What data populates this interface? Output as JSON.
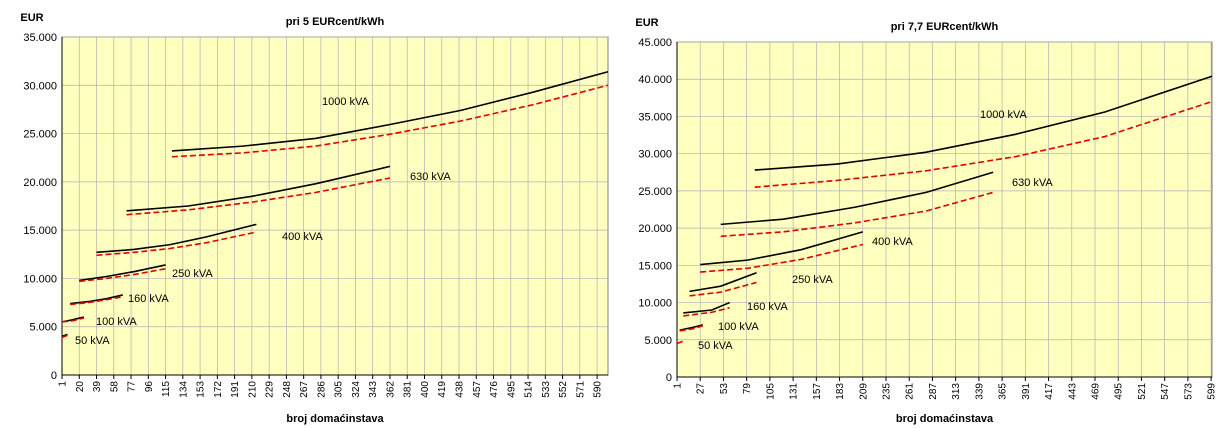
{
  "chart_data": [
    {
      "type": "line",
      "title": "pri 5 EURcent/kWh",
      "y_label": "EUR",
      "x_label": "broj domaćinstava",
      "xlim": [
        1,
        602
      ],
      "xticks": [
        1,
        20,
        39,
        58,
        77,
        96,
        115,
        134,
        153,
        172,
        191,
        210,
        229,
        248,
        267,
        286,
        305,
        324,
        343,
        362,
        381,
        400,
        419,
        438,
        457,
        476,
        495,
        514,
        533,
        552,
        571,
        590
      ],
      "ylim": [
        0,
        35000
      ],
      "yticks": [
        0,
        {
          "value": 5000,
          "label": "5.000"
        },
        {
          "value": 10000,
          "label": "10.000"
        },
        {
          "value": 15000,
          "label": "15.000"
        },
        {
          "value": 20000,
          "label": "20.000"
        },
        {
          "value": 25000,
          "label": "25.000"
        },
        {
          "value": 30000,
          "label": "30.000"
        },
        {
          "value": 35000,
          "label": "35.000"
        }
      ],
      "grid": true,
      "background": "#ffffc0",
      "annotations": [
        "1000 kVA",
        "630 kVA",
        "400 kVA",
        "250 kVA",
        "160 kVA",
        "100 kVA",
        "50 kVA"
      ],
      "series": [
        {
          "color": "#000000",
          "dash": false,
          "x": [
            122,
            200,
            280,
            360,
            440,
            520,
            602
          ],
          "values": [
            23200,
            23700,
            24500,
            25900,
            27400,
            29300,
            31400
          ]
        },
        {
          "color": "#e00000",
          "dash": true,
          "x": [
            122,
            200,
            280,
            360,
            440,
            520,
            602
          ],
          "values": [
            22600,
            23000,
            23700,
            24900,
            26300,
            28000,
            30000
          ]
        },
        {
          "color": "#000000",
          "dash": false,
          "x": [
            72,
            140,
            210,
            280,
            362
          ],
          "values": [
            17000,
            17500,
            18500,
            19800,
            21600
          ]
        },
        {
          "color": "#e00000",
          "dash": true,
          "x": [
            72,
            140,
            210,
            280,
            362
          ],
          "values": [
            16600,
            17100,
            17900,
            18900,
            20400
          ]
        },
        {
          "color": "#000000",
          "dash": false,
          "x": [
            39,
            80,
            120,
            160,
            215
          ],
          "values": [
            12700,
            13000,
            13500,
            14300,
            15600
          ]
        },
        {
          "color": "#e00000",
          "dash": true,
          "x": [
            39,
            80,
            120,
            160,
            215
          ],
          "values": [
            12400,
            12700,
            13100,
            13700,
            14800
          ]
        },
        {
          "color": "#000000",
          "dash": false,
          "x": [
            20,
            50,
            80,
            115
          ],
          "values": [
            9800,
            10200,
            10700,
            11400
          ]
        },
        {
          "color": "#e00000",
          "dash": true,
          "x": [
            20,
            50,
            80,
            115
          ],
          "values": [
            9700,
            10000,
            10400,
            11000
          ]
        },
        {
          "color": "#000000",
          "dash": false,
          "x": [
            10,
            30,
            50,
            68
          ],
          "values": [
            7400,
            7600,
            7900,
            8300
          ]
        },
        {
          "color": "#e00000",
          "dash": true,
          "x": [
            10,
            30,
            50,
            68
          ],
          "values": [
            7300,
            7500,
            7800,
            8100
          ]
        },
        {
          "color": "#000000",
          "dash": false,
          "x": [
            1,
            12,
            25
          ],
          "values": [
            5500,
            5700,
            6000
          ]
        },
        {
          "color": "#e00000",
          "dash": true,
          "x": [
            1,
            12,
            25
          ],
          "values": [
            5500,
            5600,
            5900
          ]
        },
        {
          "color": "#000000",
          "dash": false,
          "x": [
            1,
            7
          ],
          "values": [
            4000,
            4200
          ]
        },
        {
          "color": "#e00000",
          "dash": true,
          "x": [
            1,
            7
          ],
          "values": [
            3900,
            4100
          ]
        }
      ]
    },
    {
      "type": "line",
      "title": "pri 7,7 EURcent/kWh",
      "y_label": "EUR",
      "x_label": "broj domaćinstava",
      "xlim": [
        1,
        600
      ],
      "xticks": [
        1,
        27,
        53,
        79,
        105,
        131,
        157,
        183,
        209,
        235,
        261,
        287,
        313,
        339,
        365,
        391,
        417,
        443,
        469,
        495,
        521,
        547,
        573,
        599
      ],
      "ylim": [
        0,
        45000
      ],
      "yticks": [
        0,
        {
          "value": 5000,
          "label": "5.000"
        },
        {
          "value": 10000,
          "label": "10.000"
        },
        {
          "value": 15000,
          "label": "15.000"
        },
        {
          "value": 20000,
          "label": "20.000"
        },
        {
          "value": 25000,
          "label": "25.000"
        },
        {
          "value": 30000,
          "label": "30.000"
        },
        {
          "value": 35000,
          "label": "35.000"
        },
        {
          "value": 40000,
          "label": "40.000"
        },
        {
          "value": 45000,
          "label": "45.000"
        }
      ],
      "grid": true,
      "background": "#ffffc0",
      "annotations": [
        "1000 kVA",
        "630 kVA",
        "400 kVA",
        "250 kVA",
        "160 kVA",
        "100 kVA",
        "50 kVA"
      ],
      "series": [
        {
          "color": "#000000",
          "dash": false,
          "x": [
            88,
            180,
            280,
            380,
            480,
            600
          ],
          "values": [
            27800,
            28600,
            30200,
            32600,
            35600,
            40400
          ]
        },
        {
          "color": "#e00000",
          "dash": true,
          "x": [
            88,
            180,
            280,
            380,
            480,
            600
          ],
          "values": [
            25500,
            26400,
            27700,
            29600,
            32300,
            37000
          ]
        },
        {
          "color": "#000000",
          "dash": false,
          "x": [
            50,
            120,
            200,
            280,
            355
          ],
          "values": [
            20500,
            21200,
            22800,
            24800,
            27500
          ]
        },
        {
          "color": "#e00000",
          "dash": true,
          "x": [
            50,
            120,
            200,
            280,
            355
          ],
          "values": [
            18900,
            19500,
            20700,
            22300,
            24800
          ]
        },
        {
          "color": "#000000",
          "dash": false,
          "x": [
            27,
            80,
            140,
            209
          ],
          "values": [
            15100,
            15700,
            17100,
            19500
          ]
        },
        {
          "color": "#e00000",
          "dash": true,
          "x": [
            27,
            80,
            140,
            209
          ],
          "values": [
            14100,
            14600,
            15800,
            17800
          ]
        },
        {
          "color": "#000000",
          "dash": false,
          "x": [
            15,
            50,
            90
          ],
          "values": [
            11500,
            12200,
            14000
          ]
        },
        {
          "color": "#e00000",
          "dash": true,
          "x": [
            15,
            50,
            90
          ],
          "values": [
            10900,
            11400,
            12700
          ]
        },
        {
          "color": "#000000",
          "dash": false,
          "x": [
            8,
            40,
            60
          ],
          "values": [
            8600,
            9000,
            10000
          ]
        },
        {
          "color": "#e00000",
          "dash": true,
          "x": [
            8,
            40,
            60
          ],
          "values": [
            8200,
            8700,
            9300
          ]
        },
        {
          "color": "#000000",
          "dash": false,
          "x": [
            4,
            20,
            30
          ],
          "values": [
            6300,
            6700,
            7000
          ]
        },
        {
          "color": "#e00000",
          "dash": true,
          "x": [
            4,
            20,
            30
          ],
          "values": [
            6200,
            6500,
            6900
          ]
        },
        {
          "color": "#e00000",
          "dash": true,
          "x": [
            1,
            10
          ],
          "values": [
            4500,
            4900
          ]
        }
      ]
    }
  ]
}
